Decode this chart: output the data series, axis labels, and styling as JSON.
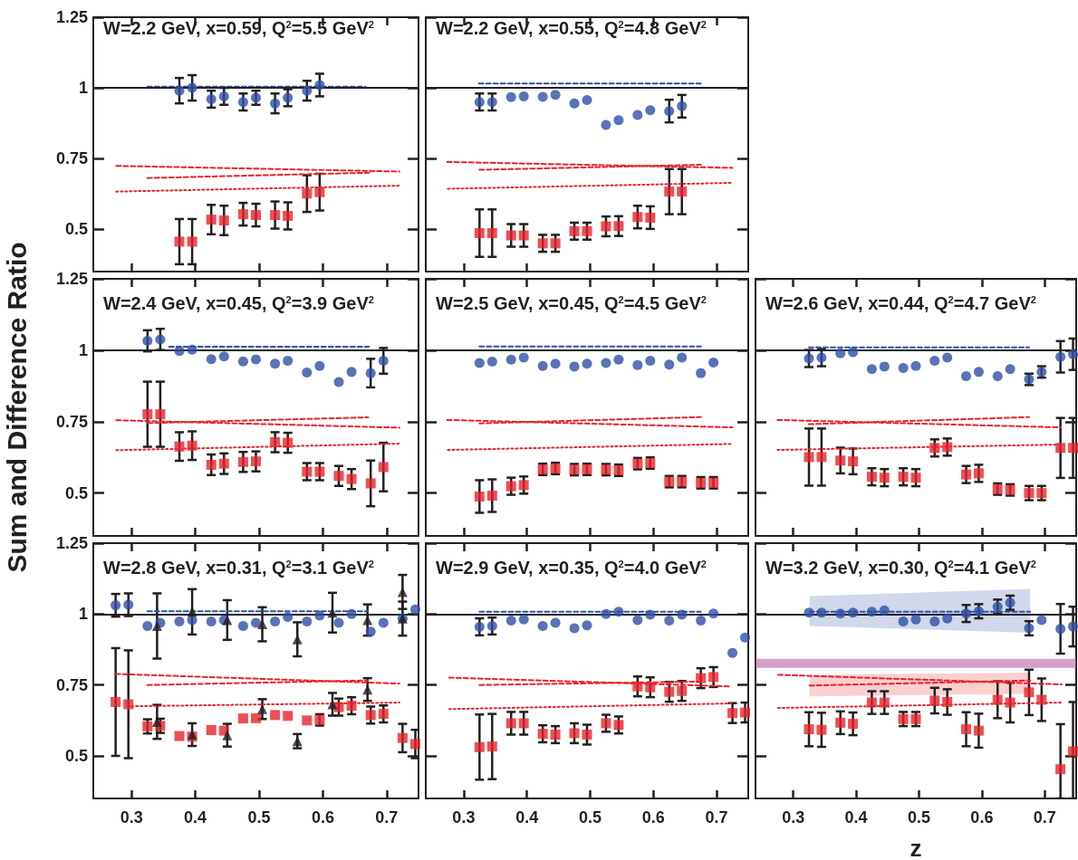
{
  "chart_data": [
    {
      "type": "scatter",
      "title": "W=2.2 GeV, x=0.59, Q$^{2}$=5.5 GeV$^{2}$",
      "xlim": [
        0.24,
        0.75
      ],
      "xticks": [
        0.3,
        0.4,
        0.5,
        0.6,
        0.7
      ],
      "ylim": [
        0.35,
        1.25
      ],
      "yticks": [
        0.5,
        0.75,
        1,
        1.25
      ],
      "tick_labels": "y",
      "ref_lines": [
        {
          "axis": "y",
          "value": 1,
          "color": "#231f20"
        }
      ],
      "series": [
        {
          "type": "scatter",
          "marker": "circle",
          "color": "#2f4fa6",
          "x": [
            0.375,
            0.425,
            0.475,
            0.525,
            0.575
          ],
          "values": [
            0.99,
            0.96,
            0.95,
            0.945,
            0.99
          ],
          "errors": [
            0.045,
            0.03,
            0.03,
            0.035,
            0.035
          ]
        },
        {
          "type": "scatter",
          "marker": "circle",
          "color": "#2f4fa6",
          "x": [
            0.395,
            0.445,
            0.495,
            0.545,
            0.595
          ],
          "values": [
            1.0,
            0.97,
            0.965,
            0.965,
            1.01
          ],
          "errors": [
            0.045,
            0.03,
            0.025,
            0.03,
            0.04
          ]
        },
        {
          "type": "scatter",
          "marker": "square",
          "color": "#e8232a",
          "x": [
            0.375,
            0.425,
            0.475,
            0.525,
            0.575
          ],
          "values": [
            0.456,
            0.534,
            0.553,
            0.55,
            0.626
          ],
          "errors": [
            0.08,
            0.052,
            0.04,
            0.048,
            0.065
          ]
        },
        {
          "type": "scatter",
          "marker": "square",
          "color": "#e8232a",
          "x": [
            0.395,
            0.445,
            0.495,
            0.545,
            0.595
          ],
          "values": [
            0.456,
            0.531,
            0.55,
            0.547,
            0.631
          ],
          "errors": [
            0.08,
            0.052,
            0.04,
            0.048,
            0.065
          ]
        },
        {
          "type": "line",
          "line_style": "dashed",
          "color": "#2f4fa6",
          "x": [
            0.325,
            0.667
          ],
          "values": [
            1.004,
            1.004
          ]
        },
        {
          "type": "line",
          "line_style": "dashed",
          "color": "#e8232a",
          "x": [
            0.276,
            0.72
          ],
          "values": [
            0.724,
            0.704
          ]
        },
        {
          "type": "line",
          "line_style": "dashed",
          "color": "#e8232a",
          "x": [
            0.325,
            0.675
          ],
          "values": [
            0.681,
            0.7
          ]
        },
        {
          "type": "line",
          "line_style": "dotted",
          "color": "#e8232a",
          "x": [
            0.276,
            0.72
          ],
          "values": [
            0.633,
            0.654
          ]
        }
      ]
    },
    {
      "type": "scatter",
      "title": "W=2.2 GeV, x=0.55, Q$^{2}$=4.8 GeV$^{2}$",
      "xlim": [
        0.24,
        0.75
      ],
      "xticks": [
        0.3,
        0.4,
        0.5,
        0.6,
        0.7
      ],
      "ylim": [
        0.35,
        1.25
      ],
      "yticks": [
        0.5,
        0.75,
        1,
        1.25
      ],
      "tick_labels": false,
      "ref_lines": [
        {
          "axis": "y",
          "value": 1,
          "color": "#231f20"
        }
      ],
      "series": [
        {
          "type": "scatter",
          "marker": "circle",
          "color": "#2f4fa6",
          "x": [
            0.325,
            0.375,
            0.425,
            0.475,
            0.525,
            0.575,
            0.625
          ],
          "values": [
            0.95,
            0.967,
            0.968,
            0.945,
            0.869,
            0.904,
            0.918
          ],
          "errors": [
            0.03,
            null,
            null,
            null,
            null,
            null,
            0.04
          ]
        },
        {
          "type": "scatter",
          "marker": "circle",
          "color": "#2f4fa6",
          "x": [
            0.345,
            0.395,
            0.445,
            0.495,
            0.545,
            0.595,
            0.645
          ],
          "values": [
            0.95,
            0.97,
            0.975,
            0.957,
            0.886,
            0.921,
            0.935
          ],
          "errors": [
            0.03,
            null,
            null,
            null,
            null,
            null,
            0.04
          ]
        },
        {
          "type": "scatter",
          "marker": "square",
          "color": "#e8232a",
          "x": [
            0.325,
            0.375,
            0.425,
            0.475,
            0.525,
            0.575,
            0.625
          ],
          "values": [
            0.486,
            0.478,
            0.45,
            0.493,
            0.51,
            0.543,
            0.633
          ],
          "errors": [
            0.084,
            0.04,
            0.03,
            0.03,
            0.035,
            0.04,
            0.08
          ]
        },
        {
          "type": "scatter",
          "marker": "square",
          "color": "#e8232a",
          "x": [
            0.345,
            0.395,
            0.445,
            0.495,
            0.545,
            0.595,
            0.645
          ],
          "values": [
            0.486,
            0.478,
            0.45,
            0.493,
            0.511,
            0.541,
            0.633
          ],
          "errors": [
            0.084,
            0.04,
            0.03,
            0.03,
            0.035,
            0.04,
            0.08
          ]
        },
        {
          "type": "line",
          "line_style": "dashed",
          "color": "#2f4fa6",
          "x": [
            0.324,
            0.675
          ],
          "values": [
            1.015,
            1.015
          ]
        },
        {
          "type": "line",
          "line_style": "dashed",
          "color": "#e8232a",
          "x": [
            0.274,
            0.725
          ],
          "values": [
            0.738,
            0.717
          ]
        },
        {
          "type": "line",
          "line_style": "dashed",
          "color": "#e8232a",
          "x": [
            0.325,
            0.675
          ],
          "values": [
            0.71,
            0.728
          ]
        },
        {
          "type": "line",
          "line_style": "dotted",
          "color": "#e8232a",
          "x": [
            0.275,
            0.725
          ],
          "values": [
            0.643,
            0.664
          ]
        }
      ]
    },
    {
      "type": "scatter",
      "title": "W=2.4 GeV, x=0.45, Q$^{2}$=3.9 GeV$^{2}$",
      "ylabel": "Sum and Difference Ratio",
      "xlim": [
        0.24,
        0.75
      ],
      "xticks": [
        0.3,
        0.4,
        0.5,
        0.6,
        0.7
      ],
      "ylim": [
        0.35,
        1.25
      ],
      "yticks": [
        0.5,
        0.75,
        1,
        1.25
      ],
      "tick_labels": "y",
      "ref_lines": [
        {
          "axis": "y",
          "value": 1,
          "color": "#231f20"
        }
      ],
      "series": [
        {
          "type": "scatter",
          "marker": "circle",
          "color": "#2f4fa6",
          "x": [
            0.325,
            0.375,
            0.425,
            0.475,
            0.525,
            0.575,
            0.625,
            0.675
          ],
          "values": [
            1.033,
            0.997,
            0.969,
            0.961,
            0.953,
            0.922,
            0.889,
            0.92
          ],
          "errors": [
            0.037,
            null,
            null,
            null,
            null,
            null,
            null,
            0.05
          ]
        },
        {
          "type": "scatter",
          "marker": "circle",
          "color": "#2f4fa6",
          "x": [
            0.345,
            0.395,
            0.445,
            0.495,
            0.545,
            0.595,
            0.645,
            0.695
          ],
          "values": [
            1.038,
            1.002,
            0.978,
            0.968,
            0.963,
            0.945,
            0.924,
            0.963
          ],
          "errors": [
            0.037,
            null,
            null,
            null,
            null,
            null,
            null,
            0.045
          ]
        },
        {
          "type": "scatter",
          "marker": "square",
          "color": "#e8232a",
          "x": [
            0.325,
            0.375,
            0.425,
            0.475,
            0.525,
            0.575,
            0.625,
            0.675
          ],
          "values": [
            0.776,
            0.663,
            0.599,
            0.609,
            0.678,
            0.575,
            0.56,
            0.534
          ],
          "errors": [
            0.114,
            0.05,
            0.036,
            0.035,
            0.035,
            0.03,
            0.035,
            0.08
          ]
        },
        {
          "type": "scatter",
          "marker": "square",
          "color": "#e8232a",
          "x": [
            0.345,
            0.395,
            0.445,
            0.495,
            0.545,
            0.595,
            0.645,
            0.695
          ],
          "values": [
            0.776,
            0.666,
            0.603,
            0.611,
            0.676,
            0.575,
            0.549,
            0.591
          ],
          "errors": [
            0.114,
            0.05,
            0.036,
            0.035,
            0.035,
            0.03,
            0.035,
            0.085
          ]
        },
        {
          "type": "line",
          "line_style": "dashed",
          "color": "#2f4fa6",
          "x": [
            0.359,
            0.672
          ],
          "values": [
            1.012,
            1.012
          ]
        },
        {
          "type": "line",
          "line_style": "dashed",
          "color": "#e8232a",
          "x": [
            0.276,
            0.72
          ],
          "values": [
            0.755,
            0.729
          ]
        },
        {
          "type": "line",
          "line_style": "dashed",
          "color": "#e8232a",
          "x": [
            0.326,
            0.671
          ],
          "values": [
            0.745,
            0.765
          ]
        },
        {
          "type": "line",
          "line_style": "dotted",
          "color": "#e8232a",
          "x": [
            0.276,
            0.72
          ],
          "values": [
            0.65,
            0.673
          ]
        }
      ]
    },
    {
      "type": "scatter",
      "title": "W=2.5 GeV, x=0.45, Q$^{2}$=4.5 GeV$^{2}$",
      "xlim": [
        0.24,
        0.75
      ],
      "xticks": [
        0.3,
        0.4,
        0.5,
        0.6,
        0.7
      ],
      "ylim": [
        0.35,
        1.25
      ],
      "yticks": [
        0.5,
        0.75,
        1,
        1.25
      ],
      "tick_labels": false,
      "ref_lines": [
        {
          "axis": "y",
          "value": 1,
          "color": "#231f20"
        }
      ],
      "series": [
        {
          "type": "scatter",
          "marker": "circle",
          "color": "#2f4fa6",
          "x": [
            0.325,
            0.375,
            0.425,
            0.475,
            0.525,
            0.575,
            0.625,
            0.675
          ],
          "values": [
            0.955,
            0.967,
            0.945,
            0.943,
            0.955,
            0.948,
            0.95,
            0.92
          ]
        },
        {
          "type": "scatter",
          "marker": "circle",
          "color": "#2f4fa6",
          "x": [
            0.345,
            0.395,
            0.445,
            0.495,
            0.545,
            0.595,
            0.645,
            0.695
          ],
          "values": [
            0.96,
            0.974,
            0.953,
            0.953,
            0.967,
            0.963,
            0.974,
            0.957
          ]
        },
        {
          "type": "scatter",
          "marker": "square",
          "color": "#e8232a",
          "x": [
            0.325,
            0.375,
            0.425,
            0.475,
            0.525,
            0.575,
            0.625,
            0.675
          ],
          "values": [
            0.488,
            0.524,
            0.583,
            0.582,
            0.582,
            0.603,
            0.54,
            0.536
          ],
          "errors": [
            0.057,
            0.03,
            0.02,
            0.02,
            0.02,
            0.02,
            0.02,
            0.02
          ]
        },
        {
          "type": "scatter",
          "marker": "square",
          "color": "#e8232a",
          "x": [
            0.345,
            0.395,
            0.445,
            0.495,
            0.545,
            0.595,
            0.645,
            0.695
          ],
          "values": [
            0.491,
            0.528,
            0.586,
            0.583,
            0.58,
            0.605,
            0.54,
            0.536
          ],
          "errors": [
            0.057,
            0.03,
            0.02,
            0.02,
            0.02,
            0.02,
            0.02,
            0.02
          ]
        },
        {
          "type": "line",
          "line_style": "dashed",
          "color": "#2f4fa6",
          "x": [
            0.325,
            0.675
          ],
          "values": [
            1.013,
            1.013
          ]
        },
        {
          "type": "line",
          "line_style": "dashed",
          "color": "#e8232a",
          "x": [
            0.274,
            0.725
          ],
          "values": [
            0.756,
            0.73
          ]
        },
        {
          "type": "line",
          "line_style": "dashed",
          "color": "#e8232a",
          "x": [
            0.325,
            0.675
          ],
          "values": [
            0.744,
            0.766
          ]
        },
        {
          "type": "line",
          "line_style": "dotted",
          "color": "#e8232a",
          "x": [
            0.275,
            0.725
          ],
          "values": [
            0.651,
            0.672
          ]
        }
      ]
    },
    {
      "type": "scatter",
      "title": "W=2.6 GeV, x=0.44, Q$^{2}$=4.7 GeV$^{2}$",
      "xlim": [
        0.24,
        0.75
      ],
      "xticks": [
        0.3,
        0.4,
        0.5,
        0.6,
        0.7
      ],
      "ylim": [
        0.35,
        1.25
      ],
      "yticks": [
        0.5,
        0.75,
        1,
        1.25
      ],
      "tick_labels": false,
      "ref_lines": [
        {
          "axis": "y",
          "value": 1,
          "color": "#231f20"
        }
      ],
      "series": [
        {
          "type": "scatter",
          "marker": "circle",
          "color": "#2f4fa6",
          "x": [
            0.325,
            0.375,
            0.425,
            0.475,
            0.525,
            0.575,
            0.625,
            0.675,
            0.725
          ],
          "values": [
            0.971,
            0.989,
            0.934,
            0.938,
            0.963,
            0.909,
            0.909,
            0.898,
            0.977
          ],
          "errors": [
            0.03,
            null,
            null,
            null,
            null,
            null,
            null,
            0.02,
            0.055
          ]
        },
        {
          "type": "scatter",
          "marker": "circle",
          "color": "#2f4fa6",
          "x": [
            0.345,
            0.395,
            0.445,
            0.495,
            0.545,
            0.595,
            0.645,
            0.695,
            0.745
          ],
          "values": [
            0.974,
            0.993,
            0.943,
            0.945,
            0.974,
            0.924,
            0.934,
            0.924,
            0.986
          ],
          "errors": [
            0.03,
            null,
            null,
            null,
            null,
            null,
            null,
            0.02,
            0.055
          ]
        },
        {
          "type": "scatter",
          "marker": "square",
          "color": "#e8232a",
          "x": [
            0.325,
            0.375,
            0.425,
            0.475,
            0.525,
            0.575,
            0.625,
            0.675,
            0.725
          ],
          "values": [
            0.626,
            0.614,
            0.557,
            0.557,
            0.658,
            0.565,
            0.514,
            0.5,
            0.658
          ],
          "errors": [
            0.1,
            0.045,
            0.03,
            0.03,
            0.03,
            0.03,
            0.02,
            0.025,
            0.105
          ]
        },
        {
          "type": "scatter",
          "marker": "square",
          "color": "#e8232a",
          "x": [
            0.345,
            0.395,
            0.445,
            0.495,
            0.545,
            0.595,
            0.645,
            0.695,
            0.745
          ],
          "values": [
            0.626,
            0.611,
            0.554,
            0.554,
            0.661,
            0.569,
            0.511,
            0.5,
            0.658
          ],
          "errors": [
            0.1,
            0.045,
            0.03,
            0.03,
            0.03,
            0.03,
            0.02,
            0.025,
            0.105
          ]
        },
        {
          "type": "line",
          "line_style": "dashed",
          "color": "#2f4fa6",
          "x": [
            0.325,
            0.675
          ],
          "values": [
            1.01,
            1.01
          ]
        },
        {
          "type": "line",
          "line_style": "dashed",
          "color": "#e8232a",
          "x": [
            0.275,
            0.725
          ],
          "values": [
            0.756,
            0.73
          ]
        },
        {
          "type": "line",
          "line_style": "dashed",
          "color": "#e8232a",
          "x": [
            0.325,
            0.675
          ],
          "values": [
            0.741,
            0.766
          ]
        },
        {
          "type": "line",
          "line_style": "dotted",
          "color": "#e8232a",
          "x": [
            0.275,
            0.725
          ],
          "values": [
            0.651,
            0.67
          ]
        }
      ]
    },
    {
      "type": "scatter",
      "title": "W=2.8 GeV, x=0.31, Q$^{2}$=3.1 GeV$^{2}$",
      "xlim": [
        0.24,
        0.75
      ],
      "xticks": [
        0.3,
        0.4,
        0.5,
        0.6,
        0.7
      ],
      "ylim": [
        0.35,
        1.25
      ],
      "yticks": [
        0.5,
        0.75,
        1,
        1.25
      ],
      "ref_lines": [
        {
          "axis": "y",
          "value": 1,
          "color": "#231f20"
        }
      ],
      "series": [
        {
          "type": "scatter",
          "marker": "circle",
          "color": "#2f4fa6",
          "x": [
            0.275,
            0.325,
            0.375,
            0.425,
            0.475,
            0.525,
            0.575,
            0.625,
            0.675,
            0.725
          ],
          "values": [
            1.031,
            0.958,
            0.974,
            0.974,
            0.958,
            0.974,
            0.974,
            0.969,
            0.938,
            0.984
          ],
          "errors": [
            0.04,
            null,
            null,
            null,
            null,
            null,
            null,
            null,
            null,
            null
          ]
        },
        {
          "type": "scatter",
          "marker": "circle",
          "color": "#2f4fa6",
          "x": [
            0.295,
            0.345,
            0.395,
            0.445,
            0.495,
            0.545,
            0.595,
            0.645,
            0.695,
            0.745
          ],
          "values": [
            1.033,
            0.969,
            0.979,
            0.979,
            0.969,
            0.99,
            0.995,
            1.0,
            0.969,
            1.016
          ],
          "errors": [
            0.04,
            null,
            null,
            null,
            null,
            null,
            null,
            null,
            null,
            null
          ]
        },
        {
          "type": "scatter",
          "marker": "square",
          "color": "#e8232a",
          "x": [
            0.275,
            0.325,
            0.375,
            0.425,
            0.475,
            0.525,
            0.575,
            0.625,
            0.675,
            0.725
          ],
          "values": [
            0.69,
            0.604,
            0.57,
            0.591,
            0.632,
            0.644,
            0.625,
            0.672,
            0.644,
            0.563
          ],
          "errors": [
            0.19,
            0.025,
            null,
            null,
            null,
            null,
            null,
            0.03,
            0.03,
            0.05
          ]
        },
        {
          "type": "scatter",
          "marker": "square",
          "color": "#e8232a",
          "x": [
            0.295,
            0.345,
            0.395,
            0.445,
            0.495,
            0.545,
            0.595,
            0.645,
            0.695,
            0.745
          ],
          "values": [
            0.682,
            0.606,
            0.568,
            0.589,
            0.633,
            0.641,
            0.627,
            0.677,
            0.648,
            0.542
          ],
          "errors": [
            0.19,
            0.025,
            null,
            null,
            null,
            null,
            0.02,
            0.03,
            0.03,
            0.05
          ]
        },
        {
          "type": "scatter",
          "marker": "triangle",
          "color": "#231f20",
          "x": [
            0.34,
            0.395,
            0.45,
            0.505,
            0.56,
            0.615,
            0.67,
            0.725
          ],
          "values": [
            0.958,
            1.008,
            0.979,
            0.964,
            0.911,
            1.005,
            0.979,
            1.078
          ],
          "errors": [
            0.115,
            0.08,
            0.07,
            0.06,
            0.06,
            0.07,
            0.055,
            0.06
          ]
        },
        {
          "type": "scatter",
          "marker": "triangle",
          "color": "#231f20",
          "x": [
            0.34,
            0.395,
            0.45,
            0.505,
            0.56,
            0.615,
            0.67,
            0.725
          ],
          "values": [
            0.62,
            0.575,
            0.573,
            0.665,
            0.552,
            0.682,
            0.734,
            0.984
          ],
          "errors": [
            0.06,
            0.04,
            0.04,
            0.035,
            0.025,
            0.04,
            0.04,
            0.06
          ]
        },
        {
          "type": "line",
          "line_style": "dashed",
          "color": "#2f4fa6",
          "x": [
            0.325,
            0.67
          ],
          "values": [
            1.01,
            1.01
          ]
        },
        {
          "type": "line",
          "line_style": "dashed",
          "color": "#e8232a",
          "x": [
            0.275,
            0.72
          ],
          "values": [
            0.789,
            0.755
          ]
        },
        {
          "type": "line",
          "line_style": "dashed",
          "color": "#e8232a",
          "x": [
            0.325,
            0.67
          ],
          "values": [
            0.75,
            0.766
          ]
        },
        {
          "type": "line",
          "line_style": "dotted",
          "color": "#e8232a",
          "x": [
            0.3,
            0.72
          ],
          "values": [
            0.675,
            0.688
          ]
        }
      ]
    },
    {
      "type": "scatter",
      "title": "W=2.9 GeV, x=0.35, Q$^{2}$=4.0 GeV$^{2}$",
      "xlim": [
        0.24,
        0.75
      ],
      "xticks": [
        0.3,
        0.4,
        0.5,
        0.6,
        0.7
      ],
      "ylim": [
        0.35,
        1.25
      ],
      "yticks": [
        0.5,
        0.75,
        1,
        1.25
      ],
      "tick_labels": "x",
      "ref_lines": [
        {
          "axis": "y",
          "value": 1,
          "color": "#231f20"
        }
      ],
      "series": [
        {
          "type": "scatter",
          "marker": "circle",
          "color": "#2f4fa6",
          "x": [
            0.325,
            0.375,
            0.425,
            0.475,
            0.525,
            0.575,
            0.625,
            0.675,
            0.725
          ],
          "values": [
            0.955,
            0.977,
            0.958,
            0.95,
            1.0,
            0.979,
            0.977,
            0.977,
            0.863
          ],
          "errors": [
            0.03,
            null,
            null,
            null,
            null,
            null,
            null,
            null,
            null
          ]
        },
        {
          "type": "scatter",
          "marker": "circle",
          "color": "#2f4fa6",
          "x": [
            0.345,
            0.395,
            0.445,
            0.495,
            0.545,
            0.595,
            0.645,
            0.695,
            0.745
          ],
          "values": [
            0.958,
            0.981,
            0.969,
            0.96,
            1.008,
            0.998,
            0.998,
            1.002,
            0.917
          ],
          "errors": [
            0.03,
            null,
            null,
            null,
            null,
            null,
            null,
            null,
            null
          ]
        },
        {
          "type": "scatter",
          "marker": "square",
          "color": "#e8232a",
          "x": [
            0.325,
            0.375,
            0.425,
            0.475,
            0.525,
            0.575,
            0.625,
            0.675,
            0.725
          ],
          "values": [
            0.531,
            0.615,
            0.578,
            0.58,
            0.615,
            0.745,
            0.726,
            0.774,
            0.651
          ],
          "errors": [
            0.115,
            0.04,
            0.03,
            0.035,
            0.03,
            0.035,
            0.035,
            0.035,
            0.035
          ]
        },
        {
          "type": "scatter",
          "marker": "square",
          "color": "#e8232a",
          "x": [
            0.345,
            0.395,
            0.445,
            0.495,
            0.545,
            0.595,
            0.645,
            0.695,
            0.745
          ],
          "values": [
            0.533,
            0.615,
            0.575,
            0.575,
            0.609,
            0.742,
            0.729,
            0.778,
            0.653
          ],
          "errors": [
            0.115,
            0.04,
            0.03,
            0.035,
            0.03,
            0.035,
            0.035,
            0.035,
            0.035
          ]
        },
        {
          "type": "line",
          "line_style": "dashed",
          "color": "#2f4fa6",
          "x": [
            0.325,
            0.675
          ],
          "values": [
            1.008,
            1.008
          ]
        },
        {
          "type": "line",
          "line_style": "dashed",
          "color": "#e8232a",
          "x": [
            0.277,
            0.723
          ],
          "values": [
            0.776,
            0.745
          ]
        },
        {
          "type": "line",
          "line_style": "dashed",
          "color": "#e8232a",
          "x": [
            0.325,
            0.675
          ],
          "values": [
            0.75,
            0.762
          ]
        },
        {
          "type": "line",
          "line_style": "dotted",
          "color": "#e8232a",
          "x": [
            0.277,
            0.723
          ],
          "values": [
            0.665,
            0.685
          ]
        }
      ]
    },
    {
      "type": "scatter",
      "title": "W=3.2 GeV, x=0.30, Q$^{2}$=4.1 GeV$^{2}$",
      "xlabel": "z",
      "xlim": [
        0.24,
        0.75
      ],
      "xticks": [
        0.3,
        0.4,
        0.5,
        0.6,
        0.7
      ],
      "ylim": [
        0.35,
        1.25
      ],
      "yticks": [
        0.5,
        0.75,
        1,
        1.25
      ],
      "tick_labels": "x",
      "ref_lines": [
        {
          "axis": "y",
          "value": 1,
          "color": "#231f20"
        }
      ],
      "bands": [
        {
          "axis": "y",
          "from": 0.81,
          "to": 0.842,
          "color": "#b5519f"
        }
      ],
      "series": [
        {
          "type": "scatter",
          "marker": "circle",
          "color": "#2f4fa6",
          "x": [
            0.325,
            0.375,
            0.425,
            0.475,
            0.525,
            0.575,
            0.625,
            0.675,
            0.725
          ],
          "values": [
            1.005,
            1.002,
            1.008,
            0.974,
            0.974,
            1.002,
            1.026,
            0.95,
            0.948
          ],
          "errors": [
            null,
            null,
            null,
            null,
            null,
            0.03,
            0.025,
            0.025,
            0.0875
          ]
        },
        {
          "type": "scatter",
          "marker": "circle",
          "color": "#2f4fa6",
          "x": [
            0.345,
            0.395,
            0.445,
            0.495,
            0.545,
            0.595,
            0.645,
            0.695,
            0.745
          ],
          "values": [
            1.005,
            1.005,
            1.013,
            0.981,
            0.984,
            1.01,
            1.04,
            0.979,
            0.956
          ],
          "errors": [
            null,
            null,
            null,
            null,
            null,
            0.025,
            0.025,
            null,
            0.07
          ]
        },
        {
          "type": "scatter",
          "marker": "square",
          "color": "#e8232a",
          "x": [
            0.325,
            0.375,
            0.425,
            0.475,
            0.525,
            0.575,
            0.625,
            0.675,
            0.725
          ],
          "values": [
            0.594,
            0.617,
            0.688,
            0.63,
            0.695,
            0.594,
            0.698,
            0.724,
            0.453
          ],
          "errors": [
            0.06,
            0.04,
            0.04,
            0.025,
            0.045,
            0.06,
            0.065,
            0.08,
            [
              0.35,
              0.612
            ]
          ]
        },
        {
          "type": "scatter",
          "marker": "square",
          "color": "#e8232a",
          "x": [
            0.345,
            0.395,
            0.445,
            0.495,
            0.545,
            0.595,
            0.645,
            0.695,
            0.745
          ],
          "values": [
            0.592,
            0.613,
            0.688,
            0.63,
            0.69,
            0.589,
            0.688,
            0.698,
            0.516
          ],
          "errors": [
            0.06,
            0.04,
            0.04,
            0.025,
            0.045,
            0.06,
            0.07,
            0.075,
            [
              0.35,
              0.69
            ]
          ]
        },
        {
          "type": "line",
          "line_style": "dashed",
          "color": "#2f4fa6",
          "x": [
            0.326,
            0.677
          ],
          "values": [
            1.008,
            1.008
          ],
          "lower": [
            0.958,
            0.934
          ],
          "upper": [
            1.063,
            1.089
          ]
        },
        {
          "type": "line",
          "line_style": "dashed",
          "color": "#e8232a",
          "x": [
            0.276,
            0.727
          ],
          "values": [
            0.786,
            0.752
          ]
        },
        {
          "type": "line",
          "line_style": "dashed",
          "color": "#e8232a",
          "x": [
            0.326,
            0.677
          ],
          "values": [
            0.748,
            0.766
          ],
          "lower": [
            0.71,
            0.719
          ],
          "upper": [
            0.786,
            0.794
          ]
        },
        {
          "type": "line",
          "line_style": "dotted",
          "color": "#e8232a",
          "x": [
            0.276,
            0.727
          ],
          "values": [
            0.669,
            0.688
          ]
        }
      ]
    }
  ]
}
